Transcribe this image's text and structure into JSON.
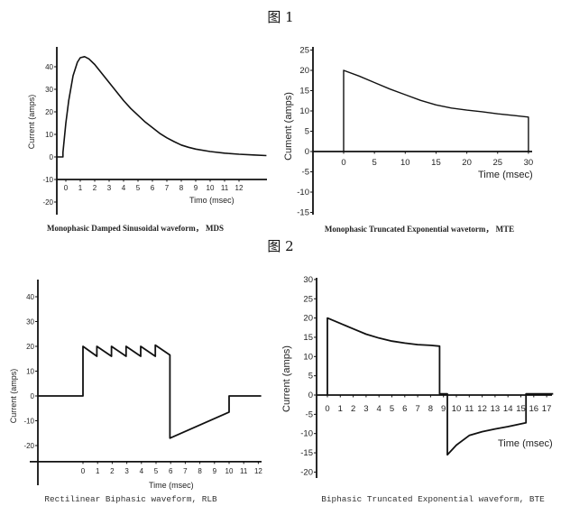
{
  "figure_labels": [
    "图 1",
    "图 2"
  ],
  "chart_data": [
    {
      "type": "line",
      "caption": "Monophasic Damped Sinusoidal waveform， MDS",
      "xlabel": "Timo (msec)",
      "ylabel": "Current (amps)",
      "xticks": [
        0,
        1,
        2,
        3,
        4,
        5,
        6,
        7,
        8,
        9,
        10,
        11,
        12
      ],
      "yticks": [
        40,
        30,
        20,
        10,
        0,
        -10,
        -20
      ],
      "xlim": [
        -0.6,
        13.9
      ],
      "ylim": [
        -25,
        47
      ],
      "series": [
        {
          "points": [
            [
              -0.6,
              0
            ],
            [
              -0.2,
              0
            ],
            [
              -0.2,
              2
            ],
            [
              0,
              15
            ],
            [
              0.2,
              25
            ],
            [
              0.5,
              36
            ],
            [
              0.8,
              42
            ],
            [
              1,
              44
            ],
            [
              1.3,
              44.5
            ],
            [
              1.6,
              43.5
            ],
            [
              2,
              41
            ],
            [
              2.5,
              37
            ],
            [
              3,
              33
            ],
            [
              3.5,
              29
            ],
            [
              4,
              25
            ],
            [
              4.5,
              21.5
            ],
            [
              5,
              18.5
            ],
            [
              5.5,
              15.5
            ],
            [
              6,
              13
            ],
            [
              6.5,
              10.5
            ],
            [
              7,
              8.5
            ],
            [
              7.5,
              6.8
            ],
            [
              8,
              5.3
            ],
            [
              8.5,
              4.3
            ],
            [
              9,
              3.5
            ],
            [
              10,
              2.4
            ],
            [
              11,
              1.7
            ],
            [
              12,
              1.2
            ],
            [
              13,
              0.9
            ],
            [
              13.9,
              0.6
            ]
          ]
        }
      ]
    },
    {
      "type": "line",
      "caption": "Monophasic Truncated Exponential wavetorm， MTE",
      "xlabel": "Time (msec)",
      "ylabel": "Cument (amps)",
      "xticks": [
        0,
        5,
        10,
        15,
        20,
        25,
        30
      ],
      "yticks": [
        25,
        20,
        15,
        10,
        5,
        0,
        -5,
        -10,
        -15
      ],
      "xlim": [
        -5,
        30.5
      ],
      "ylim": [
        -15,
        25
      ],
      "series": [
        {
          "points": [
            [
              0,
              0
            ],
            [
              0,
              20
            ],
            [
              2.5,
              18.6
            ],
            [
              5,
              17
            ],
            [
              7.5,
              15.4
            ],
            [
              10,
              14
            ],
            [
              12.5,
              12.6
            ],
            [
              15,
              11.5
            ],
            [
              17.5,
              10.7
            ],
            [
              20,
              10.2
            ],
            [
              22.5,
              9.8
            ],
            [
              25,
              9.3
            ],
            [
              27.5,
              8.9
            ],
            [
              30,
              8.5
            ],
            [
              30,
              0
            ]
          ]
        }
      ]
    },
    {
      "type": "line",
      "caption": "Rectilinear Biphasic waveform, RLB",
      "xlabel": "Time (msec)",
      "ylabel": "Current (amps)",
      "xticks": [
        0,
        1,
        2,
        3,
        4,
        5,
        6,
        7,
        8,
        9,
        10,
        11,
        12
      ],
      "yticks": [
        40,
        30,
        20,
        10,
        0,
        -10,
        -20
      ],
      "xlim": [
        -3.1,
        12.2
      ],
      "ylim": [
        -36,
        47
      ],
      "series": [
        {
          "points": [
            [
              -3.1,
              0
            ],
            [
              0,
              0
            ],
            [
              0,
              20
            ],
            [
              0.95,
              16
            ],
            [
              0.95,
              20
            ],
            [
              1.95,
              16
            ],
            [
              1.95,
              20
            ],
            [
              2.95,
              16
            ],
            [
              2.95,
              20
            ],
            [
              3.95,
              16
            ],
            [
              3.95,
              20
            ],
            [
              4.95,
              16
            ],
            [
              4.95,
              20.5
            ],
            [
              5.95,
              16.5
            ],
            [
              5.95,
              -17
            ],
            [
              10,
              -6.5
            ],
            [
              10,
              0
            ],
            [
              12.2,
              0
            ]
          ]
        }
      ]
    },
    {
      "type": "line",
      "caption": "Biphasic Truncated Exponential waveform, BTE",
      "xlabel": "Time (msec)",
      "ylabel": "Current (amps)",
      "xticks": [
        0,
        1,
        2,
        3,
        4,
        5,
        6,
        7,
        8,
        9,
        10,
        11,
        12,
        13,
        14,
        15,
        16,
        17
      ],
      "yticks": [
        30,
        25,
        20,
        15,
        10,
        5,
        0,
        -5,
        -10,
        -15,
        -20
      ],
      "xlim": [
        -0.8,
        17.5
      ],
      "ylim": [
        -21,
        30
      ],
      "series": [
        {
          "points": [
            [
              0,
              0
            ],
            [
              0,
              20
            ],
            [
              1,
              18.6
            ],
            [
              2,
              17.2
            ],
            [
              3,
              15.8
            ],
            [
              4,
              14.8
            ],
            [
              5,
              14
            ],
            [
              6,
              13.5
            ],
            [
              7,
              13.1
            ],
            [
              8,
              12.9
            ],
            [
              8.7,
              12.7
            ],
            [
              8.7,
              0.3
            ],
            [
              9.3,
              0.3
            ],
            [
              9.3,
              -15.5
            ],
            [
              10,
              -13
            ],
            [
              11,
              -10.5
            ],
            [
              12,
              -9.5
            ],
            [
              13,
              -8.8
            ],
            [
              14,
              -8.2
            ],
            [
              15.4,
              -7.2
            ],
            [
              15.4,
              0.3
            ],
            [
              17.5,
              0.3
            ]
          ]
        }
      ]
    }
  ]
}
